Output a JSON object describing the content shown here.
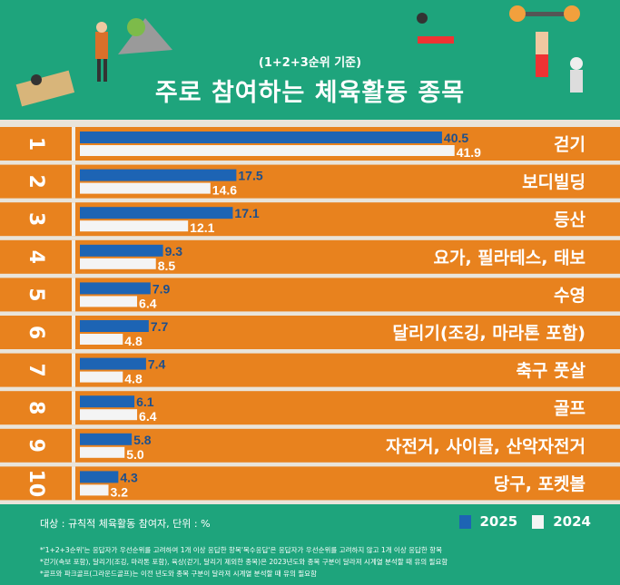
{
  "header": {
    "subtitle": "(1+2+3순위 기준)",
    "title": "주로 참여하는 체육활동 종목"
  },
  "chart_data": {
    "type": "bar",
    "orientation": "horizontal",
    "title": "주로 참여하는 체육활동 종목",
    "subtitle": "(1+2+3순위 기준)",
    "ranks": [
      "1",
      "2",
      "3",
      "4",
      "5",
      "6",
      "7",
      "8",
      "9",
      "10"
    ],
    "categories": [
      "걷기",
      "보디빌딩",
      "등산",
      "요가, 필라테스, 태보",
      "수영",
      "달리기(조깅, 마라톤 포함)",
      "축구 풋살",
      "골프",
      "자전거, 사이클, 산악자전거",
      "당구, 포켓볼"
    ],
    "series": [
      {
        "name": "2025",
        "color": "#1d64b4",
        "values": [
          40.5,
          17.5,
          17.1,
          9.3,
          7.9,
          7.7,
          7.4,
          6.1,
          5.8,
          4.3
        ]
      },
      {
        "name": "2024",
        "color": "#f4f4f4",
        "values": [
          41.9,
          14.6,
          12.1,
          8.5,
          6.4,
          4.8,
          4.8,
          6.4,
          5.0,
          3.2
        ]
      }
    ],
    "value_labels": {
      "2025": [
        "40.5",
        "17.5",
        "17.1",
        "9.3",
        "7.9",
        "7.7",
        "7.4",
        "6.1",
        "5.8",
        "4.3"
      ],
      "2024": [
        "41.9",
        "14.6",
        "12.1",
        "8.5",
        "6.4",
        "4.8",
        "4.8",
        "6.4",
        "5.0",
        "3.2"
      ]
    },
    "row_color": "#e8821e",
    "legend": "bottom-right"
  },
  "footer": {
    "target": "대상 : 규칙적 체육활동 참여자, 단위 : %",
    "legend": [
      "2025",
      "2024"
    ],
    "notes": [
      "*'1+2+3순위'는 응답자가 우선순위를 고려하여 1개 이상 응답한 항목'복수응답'은 응답자가 우선순위를 고려하지 않고 1개 이상 응답한 항목",
      "*걷기(속보 포함), 달리기(조깅, 마라톤 포함), 육상(걷기, 달리기 제외한 종목)은 2023년도와 종목 구분이 달라져 시계열 분석할 때 유의 필요함",
      "*골프와 파크골프(그라운드골프)는 이전 년도와 종목 구분이 달라져 시계열 분석할 때 유의 필요함"
    ]
  }
}
